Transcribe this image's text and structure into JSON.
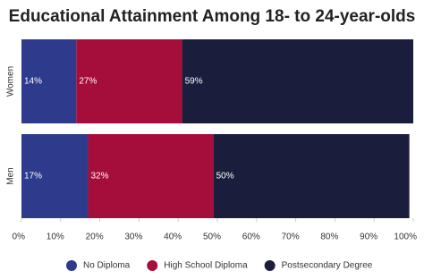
{
  "chart_data": {
    "type": "stacked-barh",
    "title": "Educational Attainment Among 18- to 24-year-olds",
    "categories": [
      "Women",
      "Men"
    ],
    "series": [
      {
        "name": "No Diploma",
        "color": "#2e3a8c",
        "values": [
          14,
          17
        ],
        "value_labels": [
          "14%",
          "17%"
        ]
      },
      {
        "name": "High School Diploma",
        "color": "#a50d3b",
        "values": [
          27,
          32
        ],
        "value_labels": [
          "27%",
          "32%"
        ]
      },
      {
        "name": "Postsecondary Degree",
        "color": "#1b1d3c",
        "values": [
          59,
          50
        ],
        "value_labels": [
          "59%",
          "50%"
        ]
      }
    ],
    "xlim": [
      0,
      100
    ],
    "xticks": [
      {
        "value": 0,
        "label": "0%"
      },
      {
        "value": 10,
        "label": "10%"
      },
      {
        "value": 20,
        "label": "20%"
      },
      {
        "value": 30,
        "label": "30%"
      },
      {
        "value": 40,
        "label": "40%"
      },
      {
        "value": 50,
        "label": "50%"
      },
      {
        "value": 60,
        "label": "60%"
      },
      {
        "value": 70,
        "label": "70%"
      },
      {
        "value": 80,
        "label": "80%"
      },
      {
        "value": 90,
        "label": "90%"
      },
      {
        "value": 100,
        "label": "100%"
      }
    ],
    "legend": "bottom"
  }
}
